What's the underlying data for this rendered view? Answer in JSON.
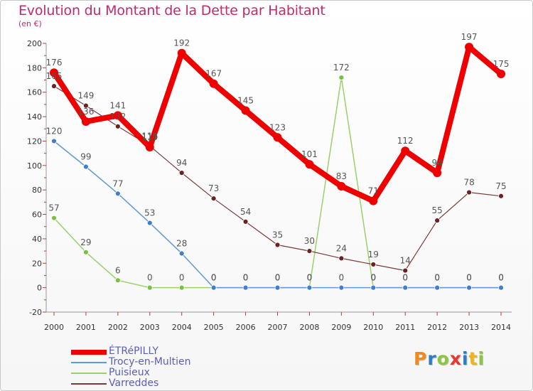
{
  "title": "Evolution du Montant de la Dette par Habitant",
  "subtitle": "(en €)",
  "logo": {
    "text": "Proxiti",
    "letter_colors": [
      "#f08a1c",
      "#2d7cc6",
      "#8cc63f",
      "#e63a2e",
      "#2d7cc6",
      "#f0b41c",
      "#8cc63f"
    ]
  },
  "chart_data": {
    "type": "line",
    "title": "Evolution du Montant de la Dette par Habitant",
    "ylabel": "(en €)",
    "xlabel": "",
    "ylim": [
      -20,
      200
    ],
    "yticks": [
      -20,
      0,
      20,
      40,
      60,
      80,
      100,
      120,
      140,
      160,
      180,
      200
    ],
    "grid": false,
    "categories": [
      "2000",
      "2001",
      "2002",
      "2003",
      "2004",
      "2005",
      "2006",
      "2007",
      "2008",
      "2009",
      "2010",
      "2011",
      "2012",
      "2013",
      "2014"
    ],
    "series": [
      {
        "name": "Puisieux",
        "color": "#99d16a",
        "marker_color": "#77c043",
        "stroke": 1.5,
        "marker": 3.5,
        "values": [
          57,
          29,
          6,
          0,
          0,
          0,
          0,
          0,
          0,
          172,
          0,
          0,
          0,
          0,
          0
        ],
        "labels": [
          "57",
          "29",
          "6",
          "0",
          "0",
          "0",
          "0",
          "0",
          "0",
          "172",
          "0",
          "0",
          "0",
          "0",
          "0"
        ]
      },
      {
        "name": "Trocy-en-Multien",
        "color": "#5f9ad6",
        "marker_color": "#3f7ec8",
        "stroke": 1.5,
        "marker": 3.5,
        "values": [
          120,
          99,
          77,
          53,
          28,
          0,
          0,
          0,
          0,
          0,
          0,
          0,
          0,
          0,
          0
        ],
        "labels": [
          "120",
          "99",
          "77",
          "53",
          "28",
          "0",
          "0",
          "0",
          "0",
          "0",
          "0",
          "0",
          "0",
          "0",
          "0"
        ]
      },
      {
        "name": "Varreddes",
        "color": "#7a3a3a",
        "marker_color": "#6a2222",
        "stroke": 1.2,
        "marker": 3.5,
        "values": [
          165,
          149,
          132,
          116,
          94,
          73,
          54,
          35,
          30,
          24,
          19,
          14,
          55,
          78,
          75
        ],
        "labels": [
          "165",
          "149",
          "132",
          "116",
          "94",
          "73",
          "54",
          "35",
          "30",
          "24",
          "19",
          "14",
          "55",
          "78",
          "75"
        ]
      },
      {
        "name": "ÉTRéPILLY",
        "color": "#ee0000",
        "marker_color": "#ee0000",
        "stroke": 8,
        "marker": 6,
        "values": [
          176,
          136,
          141,
          115,
          192,
          167,
          145,
          123,
          101,
          83,
          71,
          112,
          94,
          197,
          175
        ],
        "labels": [
          "176",
          "136",
          "141",
          "115",
          "192",
          "167",
          "145",
          "123",
          "101",
          "83",
          "71",
          "112",
          "94",
          "197",
          "175"
        ]
      }
    ],
    "legend": {
      "placement": "bottom-left",
      "entries": [
        {
          "name": "ÉTRéPILLY",
          "color": "#ee0000",
          "thickness": 7
        },
        {
          "name": "Trocy-en-Multien",
          "color": "#5f9ad6",
          "thickness": 2
        },
        {
          "name": "Puisieux",
          "color": "#99d16a",
          "thickness": 2
        },
        {
          "name": "Varreddes",
          "color": "#7a3a3a",
          "thickness": 2
        }
      ]
    }
  }
}
